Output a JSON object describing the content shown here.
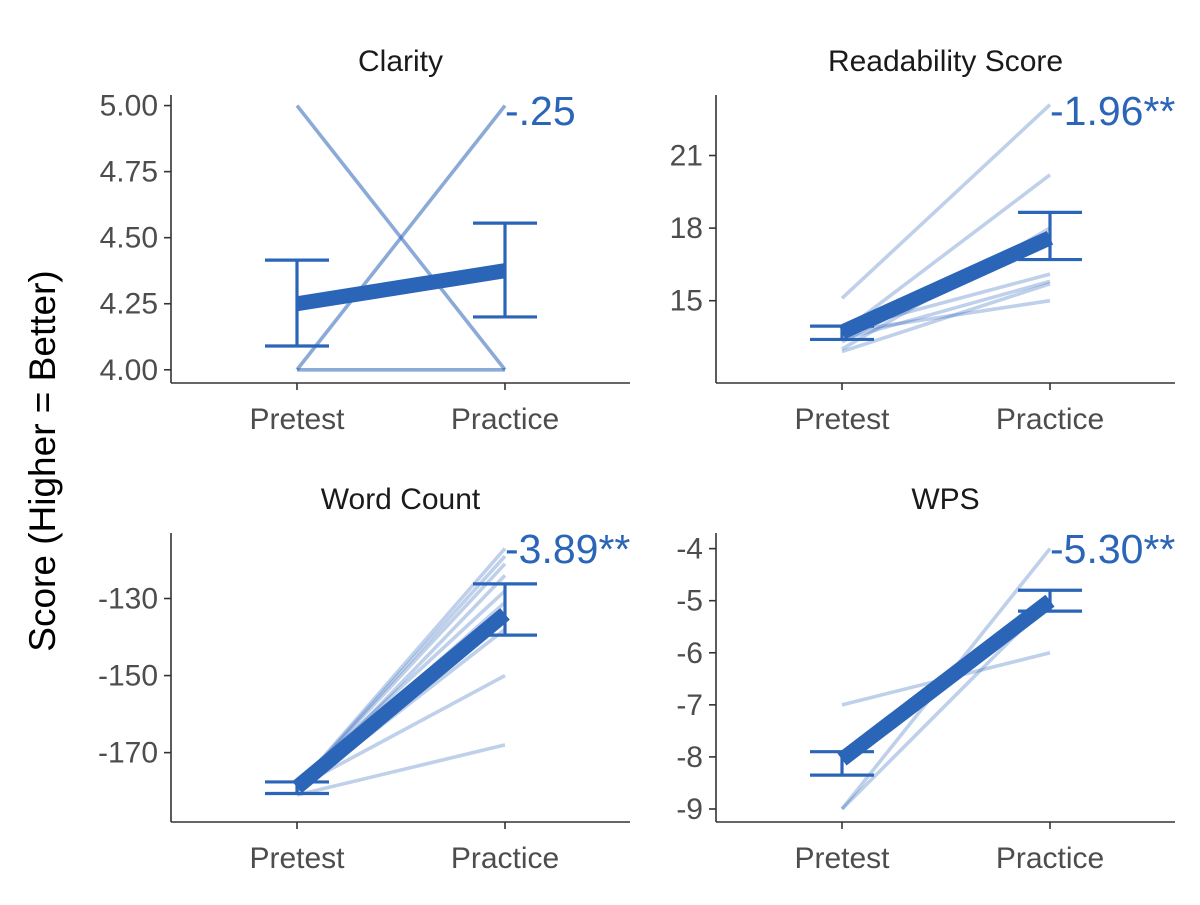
{
  "colors": {
    "mean_line": "#2b65b8",
    "individual_line": "#2b65b8",
    "annotation": "#2b65b8",
    "text": "#1a1a1a",
    "tick_text": "#4d4d4d",
    "axis": "#333333"
  },
  "y_axis_label": "Score (Higher = Better)",
  "chart_data": [
    {
      "type": "line",
      "title": "Clarity",
      "annotation": "-.25",
      "x": [
        "Pretest",
        "Practice"
      ],
      "ylim": [
        3.95,
        5.04
      ],
      "yticks": [
        4.0,
        4.25,
        4.5,
        4.75,
        5.0
      ],
      "ytick_labels": [
        "4.00",
        "4.25",
        "4.50",
        "4.75",
        "5.00"
      ],
      "mean": {
        "values": [
          4.25,
          4.375
        ],
        "error_low": [
          4.09,
          4.2
        ],
        "error_high": [
          4.415,
          4.555
        ]
      },
      "individuals": [
        [
          5.0,
          4.0
        ],
        [
          4.0,
          5.0
        ],
        [
          4.0,
          4.0
        ]
      ],
      "individual_alpha": 0.55
    },
    {
      "type": "line",
      "title": "Readability Score",
      "annotation": "-1.96**",
      "x": [
        "Pretest",
        "Practice"
      ],
      "ylim": [
        11.6,
        23.5
      ],
      "yticks": [
        15,
        18,
        21
      ],
      "ytick_labels": [
        "15",
        "18",
        "21"
      ],
      "mean": {
        "values": [
          13.7,
          17.6
        ],
        "error_low": [
          13.4,
          16.7
        ],
        "error_high": [
          13.95,
          18.65
        ]
      },
      "individuals": [
        [
          15.1,
          23.1
        ],
        [
          13.7,
          20.2
        ],
        [
          13.0,
          18.0
        ],
        [
          13.3,
          17.8
        ],
        [
          13.8,
          16.1
        ],
        [
          13.4,
          15.8
        ],
        [
          12.9,
          15.7
        ],
        [
          13.7,
          15.0
        ]
      ],
      "individual_alpha": 0.3
    },
    {
      "type": "line",
      "title": "Word Count",
      "annotation": "-3.89**",
      "x": [
        "Pretest",
        "Practice"
      ],
      "ylim": [
        -188,
        -113
      ],
      "yticks": [
        -130,
        -150,
        -170
      ],
      "ytick_labels": [
        "-130",
        "-150",
        "-170"
      ],
      "mean": {
        "values": [
          -179,
          -134
        ],
        "error_low": [
          -180.6,
          -139.5
        ],
        "error_high": [
          -177.6,
          -126.2
        ]
      },
      "individuals": [
        [
          -179,
          -117
        ],
        [
          -179,
          -119
        ],
        [
          -179,
          -121
        ],
        [
          -180,
          -124
        ],
        [
          -178,
          -128
        ],
        [
          -179,
          -131
        ],
        [
          -180,
          -138
        ],
        [
          -179,
          -150
        ],
        [
          -181,
          -168
        ]
      ],
      "individual_alpha": 0.3
    },
    {
      "type": "line",
      "title": "WPS",
      "annotation": "-5.30**",
      "x": [
        "Pretest",
        "Practice"
      ],
      "ylim": [
        -9.25,
        -3.7
      ],
      "yticks": [
        -4,
        -5,
        -6,
        -7,
        -8,
        -9
      ],
      "ytick_labels": [
        "-4",
        "-5",
        "-6",
        "-7",
        "-8",
        "-9"
      ],
      "mean": {
        "values": [
          -8.05,
          -5.0
        ],
        "error_low": [
          -8.35,
          -5.2
        ],
        "error_high": [
          -7.9,
          -4.8
        ]
      },
      "individuals": [
        [
          -9.0,
          -4.0
        ],
        [
          -9.0,
          -5.0
        ],
        [
          -8.0,
          -5.0
        ],
        [
          -8.0,
          -5.0
        ],
        [
          -7.0,
          -6.0
        ],
        [
          -8.0,
          -5.0
        ]
      ],
      "individual_alpha": 0.3
    }
  ]
}
